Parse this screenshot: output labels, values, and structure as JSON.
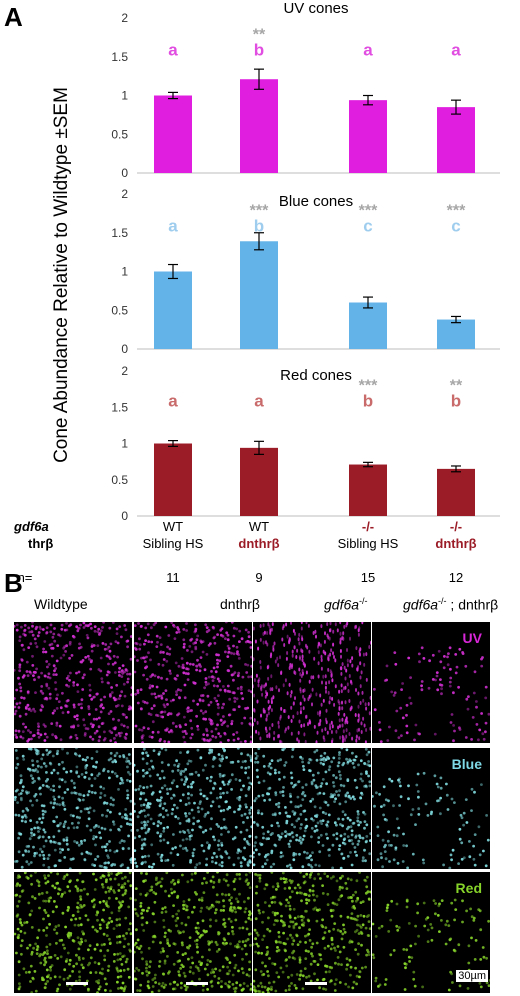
{
  "panel_a_label": "A",
  "panel_b_label": "B",
  "y_axis_label": "Cone Abundance Relative to Wildtype ±SEM",
  "colors": {
    "uv": "#e01ee0",
    "blue": "#63b2e8",
    "red": "#9b1b26",
    "sig_gray": "#a6a6a6",
    "letter_uv": "#e04de0",
    "letter_blue": "#9ecdee",
    "letter_red": "#c96b6b"
  },
  "chart_data": [
    {
      "type": "bar",
      "title": "UV cones",
      "categories": [
        "WT Sibling HS",
        "WT dnthrβ",
        "-/- Sibling HS",
        "-/- dnthrβ"
      ],
      "values": [
        1.0,
        1.21,
        0.94,
        0.85
      ],
      "errors": [
        0.04,
        0.13,
        0.06,
        0.09
      ],
      "ylim": [
        0,
        2
      ],
      "yticks": [
        "0",
        "0.5",
        "1",
        "1.5",
        "2"
      ],
      "group_letters": [
        "a",
        "b",
        "a",
        "a"
      ],
      "significance": [
        "",
        "**",
        "",
        ""
      ],
      "color": "#e01ee0"
    },
    {
      "type": "bar",
      "title": "Blue cones",
      "categories": [
        "WT Sibling HS",
        "WT dnthrβ",
        "-/- Sibling HS",
        "-/- dnthrβ"
      ],
      "values": [
        1.0,
        1.39,
        0.6,
        0.38
      ],
      "errors": [
        0.09,
        0.11,
        0.07,
        0.04
      ],
      "ylim": [
        0,
        2
      ],
      "yticks": [
        "0",
        "0.5",
        "1",
        "1.5",
        "2"
      ],
      "group_letters": [
        "a",
        "b",
        "c",
        "c"
      ],
      "significance": [
        "",
        "***",
        "***",
        "***"
      ],
      "color": "#63b2e8"
    },
    {
      "type": "bar",
      "title": "Red cones",
      "categories": [
        "WT Sibling HS",
        "WT dnthrβ",
        "-/- Sibling HS",
        "-/- dnthrβ"
      ],
      "values": [
        1.0,
        0.94,
        0.71,
        0.65
      ],
      "errors": [
        0.04,
        0.09,
        0.03,
        0.04
      ],
      "ylim": [
        0,
        2
      ],
      "yticks": [
        "0",
        "0.5",
        "1",
        "1.5",
        "2"
      ],
      "group_letters": [
        "a",
        "a",
        "b",
        "b"
      ],
      "significance": [
        "",
        "",
        "***",
        "**"
      ],
      "color": "#9b1b26"
    }
  ],
  "genotype_table": {
    "row1_header": "gdf6a",
    "row2_header": "thrβ",
    "n_header": "n=",
    "groups": [
      {
        "row1": "WT",
        "row2": "Sibling HS",
        "n": "11"
      },
      {
        "row1": "WT",
        "row2": "dnthrβ",
        "n": "9"
      },
      {
        "row1": "-/-",
        "row2": "Sibling HS",
        "n": "15"
      },
      {
        "row1": "-/-",
        "row2": "dnthrβ",
        "n": "12"
      }
    ]
  },
  "micrographs": {
    "columns": [
      "Wildtype",
      "dnthrβ",
      "gdf6a",
      "-/-",
      "gdf6a",
      "-/-",
      " ; dnthrβ"
    ],
    "col1": "Wildtype",
    "col2": "dnthrβ",
    "col3_gene": "gdf6a",
    "col3_sup": "-/-",
    "col4_gene": "gdf6a",
    "col4_sup": "-/-",
    "col4_suffix": " ; dnthrβ",
    "row_labels": [
      "UV",
      "Blue",
      "Red"
    ],
    "scale_label": "30µm"
  }
}
